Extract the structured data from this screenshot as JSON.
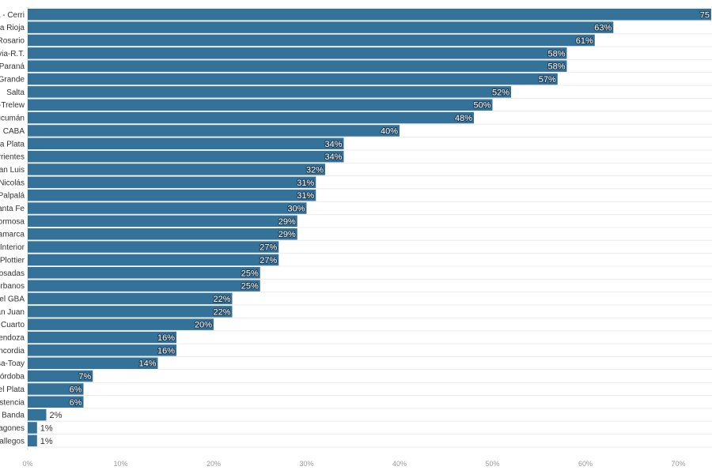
{
  "chart_data": {
    "type": "bar",
    "orientation": "horizontal",
    "categories": [
      "a - Cerri",
      "La Rioja",
      "Rosario",
      "via-R.T.",
      "Paraná",
      "Grande",
      "Salta",
      "-Trelew",
      "ucumán",
      "CABA",
      "La Plata",
      "rrientes",
      "an Luis",
      "Nicolás",
      "Palpalá",
      "anta Fe",
      "ormosa",
      "amarca",
      "Interior",
      "Plottier",
      "Josadas",
      "rbanos",
      "del GBA",
      "an Juan",
      "Cuarto",
      "endoza",
      "ncordia",
      "sa-Toay",
      "órdoba",
      "el Plata",
      "stencia",
      "a Banda",
      "agones",
      "allegos"
    ],
    "values": [
      75,
      63,
      61,
      58,
      58,
      57,
      52,
      50,
      48,
      40,
      34,
      34,
      32,
      31,
      31,
      30,
      29,
      29,
      27,
      27,
      25,
      25,
      22,
      22,
      20,
      16,
      16,
      14,
      7,
      6,
      6,
      2,
      1,
      1
    ],
    "value_labels": [
      "75",
      "63%",
      "61%",
      "58%",
      "58%",
      "57%",
      "52%",
      "50%",
      "48%",
      "40%",
      "34%",
      "34%",
      "32%",
      "31%",
      "31%",
      "30%",
      "29%",
      "29%",
      "27%",
      "27%",
      "25%",
      "25%",
      "22%",
      "22%",
      "20%",
      "16%",
      "16%",
      "14%",
      "7%",
      "6%",
      "6%",
      "2%",
      "1%",
      "1%"
    ],
    "xticks": [
      "0%",
      "10%",
      "20%",
      "30%",
      "40%",
      "50%",
      "60%",
      "70%"
    ],
    "xlim": [
      0,
      74
    ],
    "title": "",
    "xlabel": "",
    "ylabel": "",
    "grid": true,
    "bar_color": "#35729a"
  }
}
